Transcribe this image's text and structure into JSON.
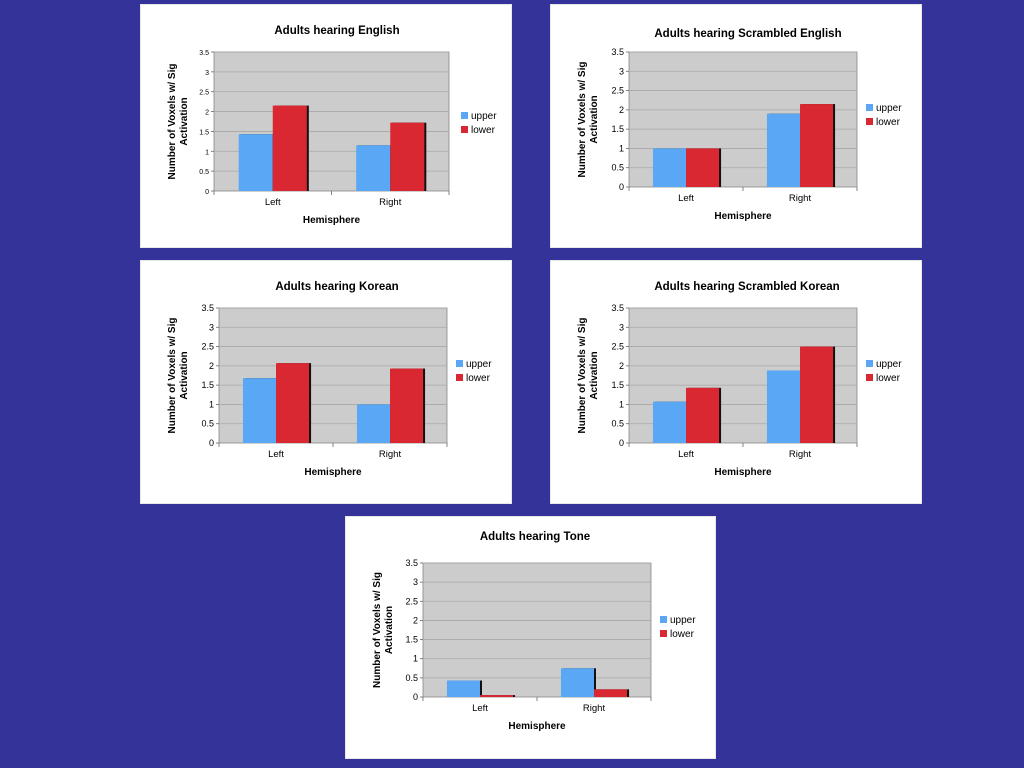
{
  "colors": {
    "background": "#333399",
    "upper": "#5aa8f5",
    "lower": "#d92832",
    "plot_bg": "#cccccc",
    "grid": "#a8a8a8"
  },
  "chart_data": [
    {
      "type": "bar",
      "title": "Adults hearing English",
      "xlabel": "Hemisphere",
      "ylabel": "Number of Voxels w/ Sig Activation",
      "ylabel_lines": [
        "Number of Voxels w/ Sig",
        "Activation"
      ],
      "categories": [
        "Left",
        "Right"
      ],
      "series": [
        {
          "name": "upper",
          "values": [
            1.43,
            1.15
          ]
        },
        {
          "name": "lower",
          "values": [
            2.15,
            1.72
          ]
        }
      ],
      "ylim": [
        0,
        3.5
      ],
      "yticks": [
        "0",
        "0.5",
        "1",
        "1.5",
        "2",
        "2.5",
        "3",
        "3.5"
      ],
      "grid": true,
      "legend": "right"
    },
    {
      "type": "bar",
      "title": "Adults hearing Scrambled English",
      "xlabel": "Hemisphere",
      "ylabel": "Number of Voxels w/ Sig Activation",
      "ylabel_lines": [
        "Number of Voxels w/ Sig",
        "Activation"
      ],
      "categories": [
        "Left",
        "Right"
      ],
      "series": [
        {
          "name": "upper",
          "values": [
            1.0,
            1.9
          ]
        },
        {
          "name": "lower",
          "values": [
            1.0,
            2.15
          ]
        }
      ],
      "ylim": [
        0,
        3.5
      ],
      "yticks": [
        "0",
        "0.5",
        "1",
        "1.5",
        "2",
        "2.5",
        "3",
        "3.5"
      ],
      "grid": true,
      "legend": "right"
    },
    {
      "type": "bar",
      "title": "Adults hearing Korean",
      "xlabel": "Hemisphere",
      "ylabel": "Number of Voxels w/ Sig Activation",
      "ylabel_lines": [
        "Number of Voxels w/ Sig",
        "Activation"
      ],
      "categories": [
        "Left",
        "Right"
      ],
      "series": [
        {
          "name": "upper",
          "values": [
            1.68,
            1.0
          ]
        },
        {
          "name": "lower",
          "values": [
            2.07,
            1.93
          ]
        }
      ],
      "ylim": [
        0,
        3.5
      ],
      "yticks": [
        "0",
        "0.5",
        "1",
        "1.5",
        "2",
        "2.5",
        "3",
        "3.5"
      ],
      "grid": true,
      "legend": "right"
    },
    {
      "type": "bar",
      "title": "Adults hearing Scrambled Korean",
      "xlabel": "Hemisphere",
      "ylabel": "Number of Voxels w/ Sig Activation",
      "ylabel_lines": [
        "Number of Voxels w/ Sig",
        "Activation"
      ],
      "categories": [
        "Left",
        "Right"
      ],
      "series": [
        {
          "name": "upper",
          "values": [
            1.07,
            1.88
          ]
        },
        {
          "name": "lower",
          "values": [
            1.43,
            2.5
          ]
        }
      ],
      "ylim": [
        0,
        3.5
      ],
      "yticks": [
        "0",
        "0.5",
        "1",
        "1.5",
        "2",
        "2.5",
        "3",
        "3.5"
      ],
      "grid": true,
      "legend": "right"
    },
    {
      "type": "bar",
      "title": "Adults hearing Tone",
      "xlabel": "Hemisphere",
      "ylabel": "Number of Voxels w/ Sig Activation",
      "ylabel_lines": [
        "Number of Voxels w/ Sig",
        "Activation"
      ],
      "categories": [
        "Left",
        "Right"
      ],
      "series": [
        {
          "name": "upper",
          "values": [
            0.43,
            0.75
          ]
        },
        {
          "name": "lower",
          "values": [
            0.05,
            0.2
          ]
        }
      ],
      "ylim": [
        0,
        3.5
      ],
      "yticks": [
        "0",
        "0.5",
        "1",
        "1.5",
        "2",
        "2.5",
        "3",
        "3.5"
      ],
      "grid": true,
      "legend": "right"
    }
  ]
}
